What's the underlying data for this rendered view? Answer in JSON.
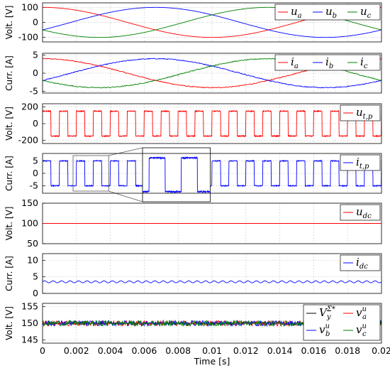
{
  "chart_data": [
    {
      "type": "line",
      "ylabel": "Volt. [V]",
      "ylim": [
        -130,
        130
      ],
      "yticks": [
        -100,
        0,
        100
      ],
      "xlim": [
        0,
        0.02
      ],
      "grid": true,
      "legend": "top-right",
      "series": [
        {
          "name": "u_a",
          "label": "u",
          "sub": "a",
          "color": "#ff0000",
          "amplitude": 100,
          "period": 0.02,
          "phase_deg": 90,
          "mean": 0
        },
        {
          "name": "u_b",
          "label": "u",
          "sub": "b",
          "color": "#0000ff",
          "amplitude": 100,
          "period": 0.02,
          "phase_deg": -30,
          "mean": 0
        },
        {
          "name": "u_c",
          "label": "u",
          "sub": "c",
          "color": "#008000",
          "amplitude": 100,
          "period": 0.02,
          "phase_deg": 210,
          "mean": 0
        }
      ]
    },
    {
      "type": "line",
      "ylabel": "Curr. [A]",
      "ylim": [
        -5.5,
        5.5
      ],
      "yticks": [
        -5,
        0,
        5
      ],
      "xlim": [
        0,
        0.02
      ],
      "grid": true,
      "legend": "top-right",
      "series": [
        {
          "name": "i_a",
          "label": "i",
          "sub": "a",
          "color": "#ff0000",
          "amplitude": 4,
          "period": 0.02,
          "phase_deg": 90,
          "mean": 0,
          "ripple": 0.25
        },
        {
          "name": "i_b",
          "label": "i",
          "sub": "b",
          "color": "#0000ff",
          "amplitude": 4,
          "period": 0.02,
          "phase_deg": -30,
          "mean": 0,
          "ripple": 0.25
        },
        {
          "name": "i_c",
          "label": "i",
          "sub": "c",
          "color": "#008000",
          "amplitude": 4,
          "period": 0.02,
          "phase_deg": 210,
          "mean": 0,
          "ripple": 0.25
        }
      ]
    },
    {
      "type": "line",
      "ylabel": "Volt. [V]",
      "ylim": [
        -240,
        240
      ],
      "yticks": [
        -200,
        0,
        200
      ],
      "xlim": [
        0,
        0.02
      ],
      "grid": true,
      "legend": "top-right",
      "series": [
        {
          "name": "u_t,p",
          "label": "u",
          "sub": "t,p",
          "color": "#ff0000",
          "shape": "square",
          "high": 150,
          "low": -150,
          "period": 0.001,
          "ripple": 12
        }
      ]
    },
    {
      "type": "line",
      "ylabel": "Curr. [A]",
      "ylim": [
        -8,
        8
      ],
      "yticks": [
        -5,
        0,
        5
      ],
      "xlim": [
        0,
        0.02
      ],
      "grid": true,
      "legend": "top-right",
      "inset": {
        "zoom_x": [
          0.0018,
          0.0039
        ],
        "display_x": [
          0.0059,
          0.0099
        ],
        "display_y": [
          -8,
          8
        ]
      },
      "series": [
        {
          "name": "i_t,p",
          "label": "i",
          "sub": "t,p",
          "color": "#0000ff",
          "shape": "square",
          "high": 5,
          "low": -5,
          "period": 0.001,
          "ripple": 0.4
        }
      ]
    },
    {
      "type": "line",
      "ylabel": "Volt. [V]",
      "ylim": [
        50,
        150
      ],
      "yticks": [
        50,
        100,
        150
      ],
      "xlim": [
        0,
        0.02
      ],
      "grid": true,
      "legend": "top-right",
      "series": [
        {
          "name": "u_dc",
          "label": "u",
          "sub": "dc",
          "color": "#ff0000",
          "constant": 100
        }
      ]
    },
    {
      "type": "line",
      "ylabel": "Curr. [A]",
      "ylim": [
        0,
        12
      ],
      "yticks": [
        0,
        5,
        10
      ],
      "xlim": [
        0,
        0.02
      ],
      "grid": true,
      "legend": "top-right",
      "series": [
        {
          "name": "i_dc",
          "label": "i",
          "sub": "dc",
          "color": "#0000ff",
          "mean": 3.5,
          "ripple": 0.6,
          "period": 0.0005
        }
      ]
    },
    {
      "type": "line",
      "ylabel": "Volt. [V]",
      "xlabel": "Time [s]",
      "ylim": [
        144,
        156
      ],
      "yticks": [
        145,
        150,
        155
      ],
      "xlim": [
        0,
        0.02
      ],
      "xticks": [
        "0",
        "0.002",
        "0.004",
        "0.006",
        "0.008",
        "0.01",
        "0.012",
        "0.014",
        "0.016",
        "0.018",
        "0.02"
      ],
      "grid": true,
      "legend": "top-right",
      "series": [
        {
          "name": "V_y^Σ*",
          "label": "V",
          "sub": "y",
          "sup": "Σ*",
          "color": "#000000",
          "constant": 150
        },
        {
          "name": "v_a^u",
          "label": "v",
          "sub": "a",
          "sup": "u",
          "color": "#ff0000",
          "mean": 150,
          "noise": 0.8
        },
        {
          "name": "v_b^u",
          "label": "v",
          "sub": "b",
          "sup": "u",
          "color": "#0000ff",
          "mean": 150,
          "noise": 0.8
        },
        {
          "name": "v_c^u",
          "label": "v",
          "sub": "c",
          "sup": "u",
          "color": "#008000",
          "mean": 150,
          "noise": 0.8
        }
      ]
    }
  ]
}
